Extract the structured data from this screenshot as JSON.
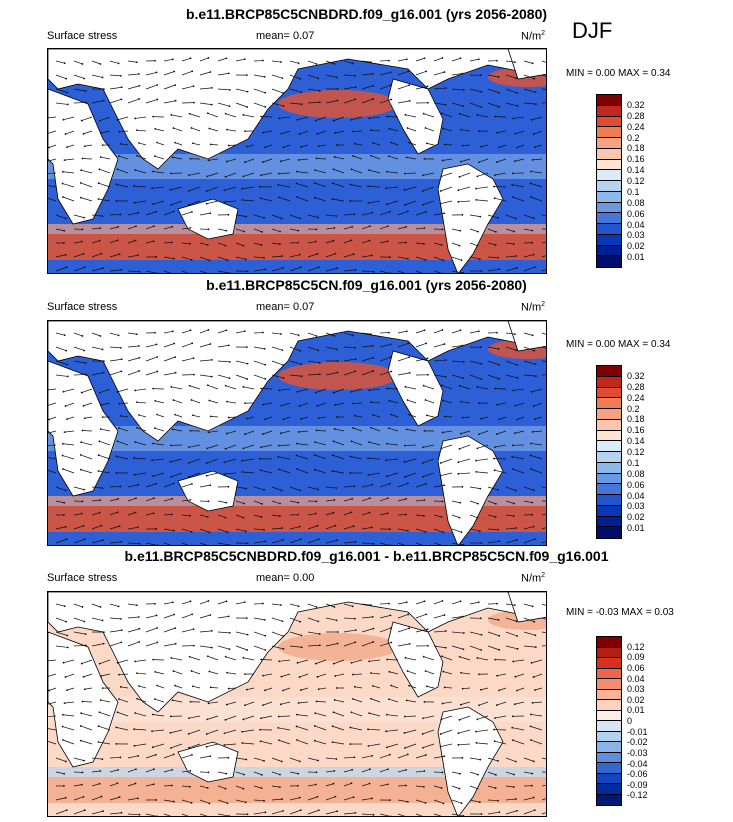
{
  "season": "DJF",
  "panels": [
    {
      "title": "b.e11.BRCP85C5CNBDRD.f09_g16.001 (yrs 2056-2080)",
      "variable": "Surface stress",
      "mean": "mean=  0.07",
      "units": "N/m",
      "units_sup": "2",
      "minmax": "MIN =   0.00 MAX =   0.34",
      "colorbar_colors": [
        "#7f0000",
        "#c0281b",
        "#e34a33",
        "#f47c54",
        "#f9a282",
        "#fbc6ae",
        "#fde3d4",
        "#dcebf8",
        "#b5d3f1",
        "#8eb8ea",
        "#6a98e2",
        "#4676d9",
        "#2555cd",
        "#0a36b8",
        "#001f97",
        "#000e6b"
      ],
      "colorbar_ticks": [
        "0.32",
        "0.28",
        "0.24",
        "0.2",
        "0.18",
        "0.16",
        "0.14",
        "0.12",
        "0.1",
        "0.08",
        "0.06",
        "0.04",
        "0.03",
        "0.02",
        "0.01"
      ],
      "field_colors": {
        "ocean": "#2d5fd6",
        "band_strong": "#e7532d",
        "band_mid": "#f4a582",
        "weak": "#9cc2ee",
        "land": "#ffffff"
      }
    },
    {
      "title": "b.e11.BRCP85C5CN.f09_g16.001 (yrs 2056-2080)",
      "variable": "Surface stress",
      "mean": "mean=  0.07",
      "units": "N/m",
      "units_sup": "2",
      "minmax": "MIN =   0.00 MAX =   0.34",
      "colorbar_colors": [
        "#7f0000",
        "#c0281b",
        "#e34a33",
        "#f47c54",
        "#f9a282",
        "#fbc6ae",
        "#fde3d4",
        "#dcebf8",
        "#b5d3f1",
        "#8eb8ea",
        "#6a98e2",
        "#4676d9",
        "#2555cd",
        "#0a36b8",
        "#001f97",
        "#000e6b"
      ],
      "colorbar_ticks": [
        "0.32",
        "0.28",
        "0.24",
        "0.2",
        "0.18",
        "0.16",
        "0.14",
        "0.12",
        "0.1",
        "0.08",
        "0.06",
        "0.04",
        "0.03",
        "0.02",
        "0.01"
      ],
      "field_colors": {
        "ocean": "#2d5fd6",
        "band_strong": "#e7532d",
        "band_mid": "#f4a582",
        "weak": "#9cc2ee",
        "land": "#ffffff"
      }
    },
    {
      "title": "b.e11.BRCP85C5CNBDRD.f09_g16.001 - b.e11.BRCP85C5CN.f09_g16.001",
      "variable": "Surface stress",
      "mean": "mean=  0.00",
      "units": "N/m",
      "units_sup": "2",
      "minmax": "MIN =  -0.03 MAX =   0.03",
      "colorbar_colors": [
        "#7f0000",
        "#b31e14",
        "#d7301f",
        "#ef6548",
        "#f58d6e",
        "#f9b294",
        "#fbd2bf",
        "#fdeee5",
        "#d6e6f6",
        "#b3d0ef",
        "#8ab3e7",
        "#5f8fdc",
        "#3468cf",
        "#1444bf",
        "#002c9e",
        "#001878"
      ],
      "colorbar_ticks": [
        "0.12",
        "0.09",
        "0.06",
        "0.04",
        "0.03",
        "0.02",
        "0.01",
        "0",
        "-0.01",
        "-0.02",
        "-0.03",
        "-0.04",
        "-0.06",
        "-0.09",
        "-0.12"
      ],
      "field_colors": {
        "ocean": "#fbd9c6",
        "band_strong": "#f3a98a",
        "band_mid": "#b9d3f0",
        "weak": "#fde9dd",
        "land": "#ffffff"
      }
    }
  ]
}
